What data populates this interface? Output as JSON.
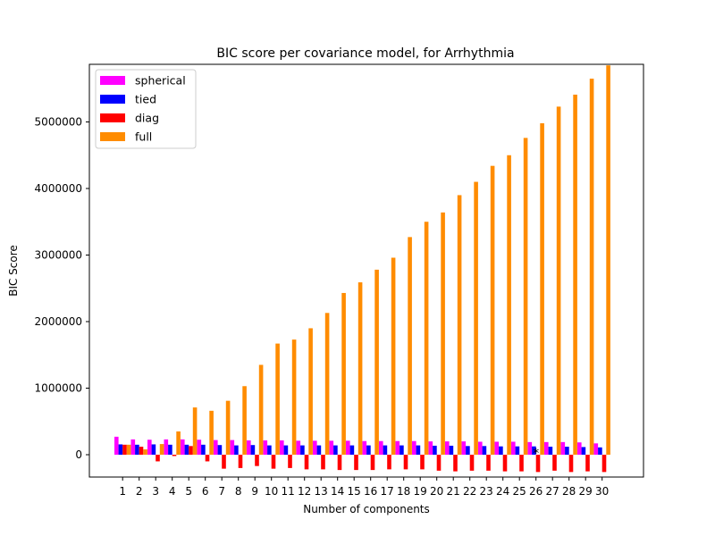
{
  "chart_data": {
    "type": "bar",
    "title": "BIC score per covariance model, for Arrhythmia",
    "xlabel": "Number of components",
    "ylabel": "BIC Score",
    "ylim": [
      -320000,
      5850000
    ],
    "yticks": [
      0,
      1000000,
      2000000,
      3000000,
      4000000,
      5000000
    ],
    "ytick_labels": [
      "0",
      "1000000",
      "2000000",
      "3000000",
      "4000000",
      "5000000"
    ],
    "categories": [
      "1",
      "2",
      "3",
      "4",
      "5",
      "6",
      "7",
      "8",
      "9",
      "10",
      "11",
      "12",
      "13",
      "14",
      "15",
      "16",
      "17",
      "18",
      "19",
      "20",
      "21",
      "22",
      "23",
      "24",
      "25",
      "26",
      "27",
      "28",
      "29",
      "30"
    ],
    "legend_position": "upper-left",
    "grid": false,
    "best_marker": {
      "symbol": "*",
      "category": "26"
    },
    "series": [
      {
        "name": "spherical",
        "color": "#ff00ff",
        "values": [
          270000,
          230000,
          225000,
          230000,
          230000,
          225000,
          220000,
          220000,
          215000,
          215000,
          215000,
          210000,
          210000,
          210000,
          210000,
          205000,
          205000,
          205000,
          205000,
          200000,
          200000,
          200000,
          195000,
          195000,
          195000,
          190000,
          190000,
          190000,
          185000,
          170000
        ]
      },
      {
        "name": "tied",
        "color": "#0000ff",
        "values": [
          155000,
          150000,
          155000,
          150000,
          150000,
          150000,
          145000,
          140000,
          145000,
          140000,
          140000,
          140000,
          140000,
          140000,
          140000,
          140000,
          140000,
          140000,
          140000,
          135000,
          135000,
          130000,
          130000,
          125000,
          125000,
          125000,
          120000,
          120000,
          115000,
          110000
        ]
      },
      {
        "name": "diag",
        "color": "#ff0000",
        "values": [
          150000,
          120000,
          -100000,
          -20000,
          130000,
          -100000,
          -210000,
          -200000,
          -170000,
          -210000,
          -200000,
          -220000,
          -220000,
          -230000,
          -230000,
          -230000,
          -220000,
          -220000,
          -220000,
          -240000,
          -250000,
          -240000,
          -240000,
          -250000,
          -250000,
          -260000,
          -240000,
          -260000,
          -250000,
          -260000
        ]
      },
      {
        "name": "full",
        "color": "#ff8c00",
        "values": [
          150000,
          80000,
          160000,
          350000,
          710000,
          660000,
          810000,
          1030000,
          1350000,
          1670000,
          1730000,
          1900000,
          2130000,
          2430000,
          2590000,
          2780000,
          2960000,
          3270000,
          3500000,
          3640000,
          3900000,
          4100000,
          4340000,
          4500000,
          4760000,
          4980000,
          5230000,
          5410000,
          5650000,
          5850000
        ]
      }
    ]
  }
}
